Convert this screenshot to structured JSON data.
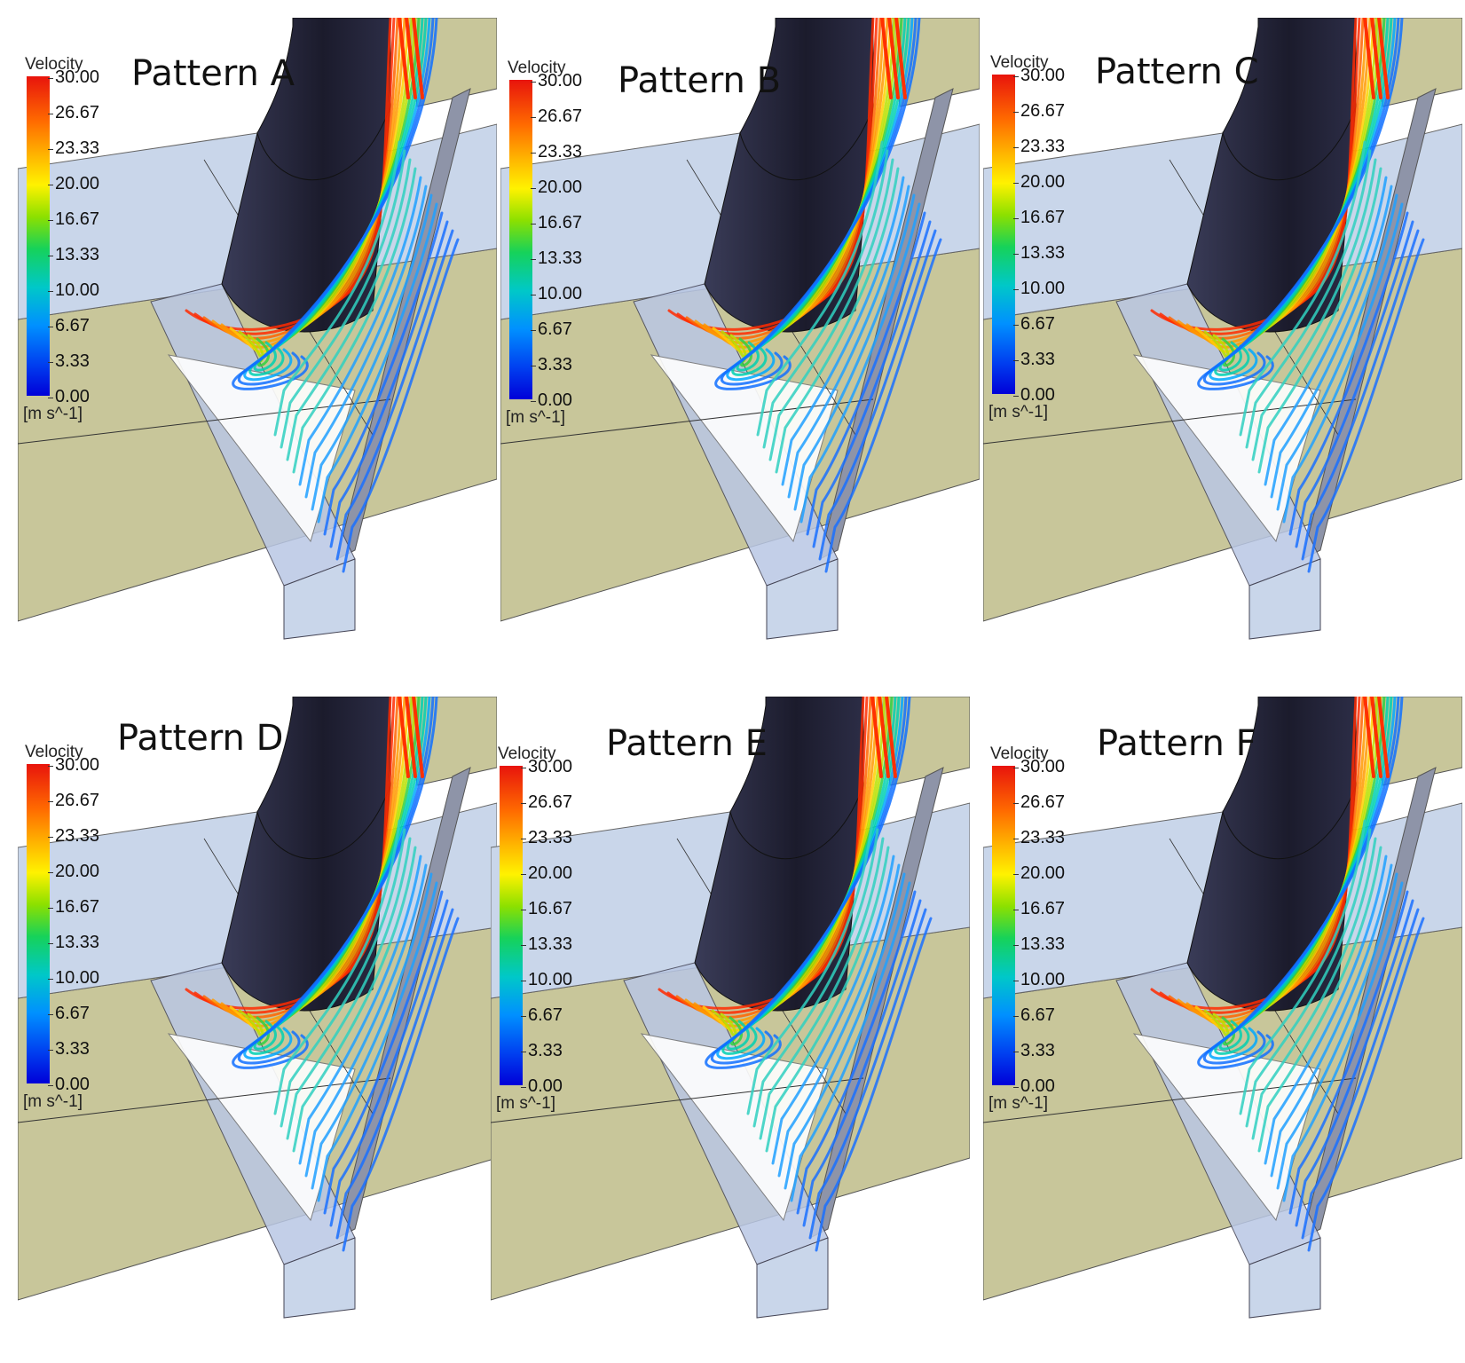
{
  "legend": {
    "name": "Velocity",
    "unit": "[m s^-1]",
    "ticks": [
      "30.00",
      "26.67",
      "23.33",
      "20.00",
      "16.67",
      "13.33",
      "10.00",
      "6.67",
      "3.33",
      "0.00"
    ]
  },
  "panels": [
    {
      "title": "Pattern A"
    },
    {
      "title": "Pattern B"
    },
    {
      "title": "Pattern C"
    },
    {
      "title": "Pattern D"
    },
    {
      "title": "Pattern E"
    },
    {
      "title": "Pattern F"
    }
  ],
  "colors": {
    "floor": "#c8c69a",
    "wall": "#c9d6ea",
    "duct": "#24243a",
    "streamline_fast": "#ff5a00",
    "streamline_mid": "#ffd000",
    "streamline_slow": "#2080ff"
  }
}
